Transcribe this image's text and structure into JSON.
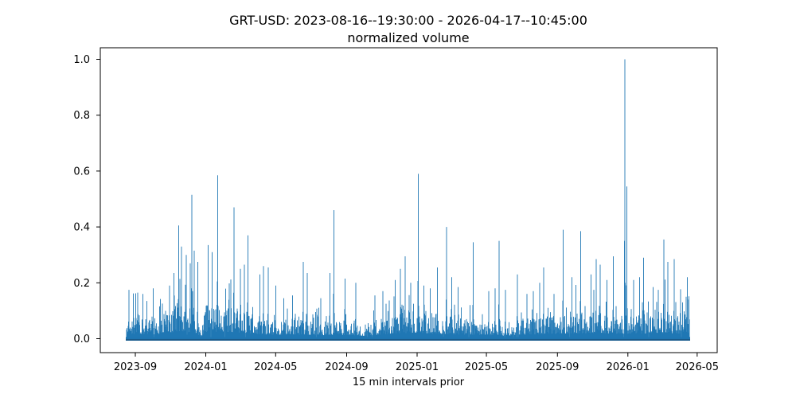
{
  "chart_data": {
    "type": "line",
    "title": "GRT-USD: 2023-08-16--19:30:00 - 2026-04-17--10:45:00",
    "subtitle": "normalized volume",
    "xlabel": "15 min intervals prior",
    "ylabel": "",
    "x_start": "2023-08-16T19:30:00",
    "x_end": "2026-04-17T10:45:00",
    "interval": "15 min",
    "x_ticks": [
      "2023-09",
      "2024-01",
      "2024-05",
      "2024-09",
      "2025-01",
      "2025-05",
      "2025-09",
      "2026-01",
      "2026-05"
    ],
    "y_ticks": [
      0.0,
      0.2,
      0.4,
      0.6,
      0.8,
      1.0
    ],
    "ylim": [
      -0.05,
      1.05
    ],
    "grid": false,
    "legend": null,
    "line_color": "#1f77b4",
    "baseline_dense_color": "#1a5a8a",
    "axis_color": "#000000",
    "background": "#ffffff",
    "series_description": "dense 15-minute normalized volume: noise floor mostly 0.00-0.12 with sharp isolated spikes; peak value 1.0 in late 2025-12",
    "noise": {
      "seed": 42,
      "base": 0.028,
      "amp": 0.115,
      "minor_spike_chance": 0.13,
      "minor_spike_amp": 0.17,
      "gap_chance": 0.028
    },
    "envelope": [
      [
        0.0,
        0.5
      ],
      [
        0.02,
        0.62
      ],
      [
        0.05,
        0.55
      ],
      [
        0.079,
        0.8
      ],
      [
        0.1,
        0.88
      ],
      [
        0.122,
        0.8
      ],
      [
        0.127,
        0.3
      ],
      [
        0.133,
        0.3
      ],
      [
        0.141,
        0.85
      ],
      [
        0.17,
        0.9
      ],
      [
        0.216,
        0.7
      ],
      [
        0.24,
        0.55
      ],
      [
        0.262,
        0.45
      ],
      [
        0.265,
        0.18
      ],
      [
        0.269,
        0.45
      ],
      [
        0.3,
        0.52
      ],
      [
        0.34,
        0.42
      ],
      [
        0.38,
        0.48
      ],
      [
        0.419,
        0.35
      ],
      [
        0.43,
        0.42
      ],
      [
        0.46,
        0.55
      ],
      [
        0.48,
        0.68
      ],
      [
        0.518,
        0.72
      ],
      [
        0.55,
        0.62
      ],
      [
        0.58,
        0.55
      ],
      [
        0.62,
        0.48
      ],
      [
        0.68,
        0.35
      ],
      [
        0.69,
        0.5
      ],
      [
        0.72,
        0.55
      ],
      [
        0.765,
        0.62
      ],
      [
        0.8,
        0.66
      ],
      [
        0.84,
        0.7
      ],
      [
        0.88,
        0.62
      ],
      [
        0.92,
        0.66
      ],
      [
        0.96,
        0.7
      ],
      [
        1.0,
        0.62
      ]
    ],
    "spikes": [
      [
        "2023-08-21",
        0.175
      ],
      [
        "2023-09-05",
        0.165
      ],
      [
        "2023-09-14",
        0.16
      ],
      [
        "2023-09-21",
        0.135
      ],
      [
        "2023-10-02",
        0.18
      ],
      [
        "2023-10-30",
        0.19
      ],
      [
        "2023-11-07",
        0.235
      ],
      [
        "2023-11-15",
        0.405
      ],
      [
        "2023-11-20",
        0.33
      ],
      [
        "2023-11-28",
        0.3
      ],
      [
        "2023-12-05",
        0.27
      ],
      [
        "2023-12-08",
        0.515
      ],
      [
        "2023-12-12",
        0.315
      ],
      [
        "2023-12-18",
        0.275
      ],
      [
        "2024-01-05",
        0.335
      ],
      [
        "2024-01-12",
        0.31
      ],
      [
        "2024-01-22",
        0.585
      ],
      [
        "2024-02-19",
        0.47
      ],
      [
        "2024-03-01",
        0.25
      ],
      [
        "2024-03-08",
        0.265
      ],
      [
        "2024-03-14",
        0.37
      ],
      [
        "2024-04-04",
        0.23
      ],
      [
        "2024-04-10",
        0.26
      ],
      [
        "2024-04-18",
        0.255
      ],
      [
        "2024-05-01",
        0.19
      ],
      [
        "2024-05-15",
        0.145
      ],
      [
        "2024-05-30",
        0.155
      ],
      [
        "2024-06-18",
        0.275
      ],
      [
        "2024-06-25",
        0.235
      ],
      [
        "2024-07-18",
        0.145
      ],
      [
        "2024-08-03",
        0.235
      ],
      [
        "2024-08-10",
        0.46
      ],
      [
        "2024-08-29",
        0.215
      ],
      [
        "2024-09-17",
        0.2
      ],
      [
        "2024-10-20",
        0.155
      ],
      [
        "2024-11-03",
        0.17
      ],
      [
        "2024-11-24",
        0.21
      ],
      [
        "2024-12-03",
        0.25
      ],
      [
        "2024-12-11",
        0.295
      ],
      [
        "2024-12-21",
        0.2
      ],
      [
        "2025-01-03",
        0.59
      ],
      [
        "2025-01-13",
        0.19
      ],
      [
        "2025-02-05",
        0.255
      ],
      [
        "2025-02-21",
        0.4
      ],
      [
        "2025-03-02",
        0.22
      ],
      [
        "2025-03-13",
        0.185
      ],
      [
        "2025-04-08",
        0.345
      ],
      [
        "2025-05-05",
        0.17
      ],
      [
        "2025-05-16",
        0.18
      ],
      [
        "2025-05-23",
        0.35
      ],
      [
        "2025-06-03",
        0.175
      ],
      [
        "2025-06-24",
        0.23
      ],
      [
        "2025-07-10",
        0.16
      ],
      [
        "2025-07-21",
        0.17
      ],
      [
        "2025-08-01",
        0.2
      ],
      [
        "2025-08-08",
        0.255
      ],
      [
        "2025-08-26",
        0.16
      ],
      [
        "2025-09-11",
        0.39
      ],
      [
        "2025-09-26",
        0.22
      ],
      [
        "2025-10-11",
        0.385
      ],
      [
        "2025-10-29",
        0.23
      ],
      [
        "2025-11-07",
        0.285
      ],
      [
        "2025-11-14",
        0.265
      ],
      [
        "2025-11-26",
        0.21
      ],
      [
        "2025-12-07",
        0.295
      ],
      [
        "2025-12-27",
        1.0
      ],
      [
        "2025-12-30",
        0.545
      ],
      [
        "2026-01-11",
        0.21
      ],
      [
        "2026-01-21",
        0.22
      ],
      [
        "2026-01-28",
        0.29
      ],
      [
        "2026-02-14",
        0.185
      ],
      [
        "2026-02-23",
        0.175
      ],
      [
        "2026-03-04",
        0.355
      ],
      [
        "2026-03-11",
        0.275
      ],
      [
        "2026-03-22",
        0.285
      ],
      [
        "2026-04-14",
        0.22
      ]
    ]
  }
}
